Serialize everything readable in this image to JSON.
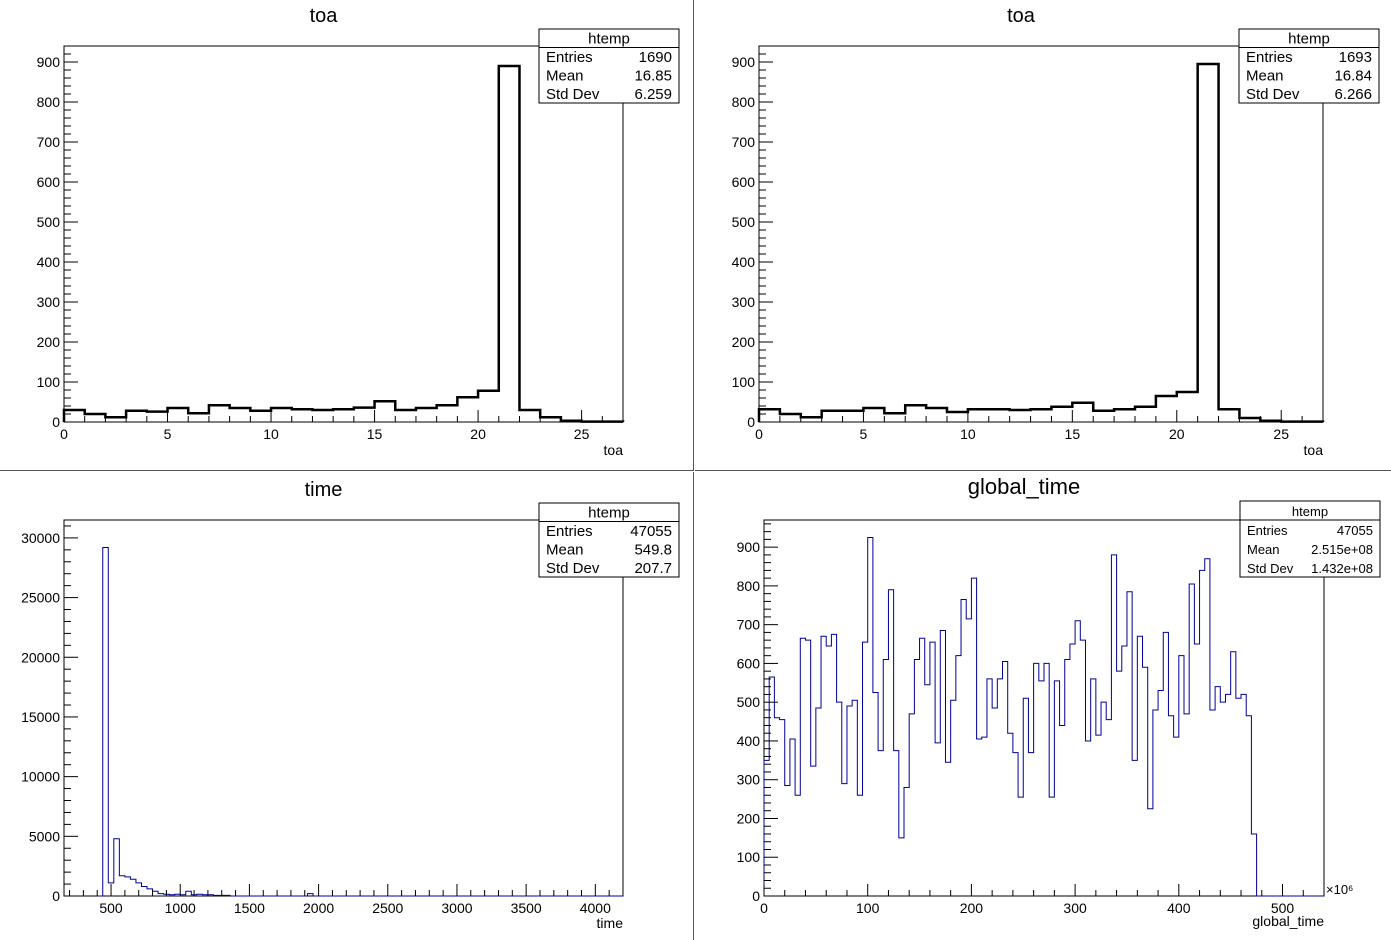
{
  "chart_data": [
    {
      "type": "bar",
      "title": "toa",
      "xlabel": "toa",
      "ylabel": "",
      "xlim": [
        0,
        27
      ],
      "ylim": [
        0,
        940
      ],
      "xticks": [
        0,
        5,
        10,
        15,
        20,
        25
      ],
      "yticks": [
        0,
        100,
        200,
        300,
        400,
        500,
        600,
        700,
        800,
        900
      ],
      "bin_edges": [
        0,
        1,
        2,
        3,
        4,
        5,
        6,
        7,
        8,
        9,
        10,
        11,
        12,
        13,
        14,
        15,
        16,
        17,
        18,
        19,
        20,
        21,
        22,
        23,
        24,
        25,
        26,
        27
      ],
      "values": [
        30,
        20,
        12,
        28,
        26,
        35,
        22,
        42,
        35,
        28,
        35,
        32,
        30,
        32,
        36,
        52,
        30,
        35,
        42,
        62,
        78,
        890,
        30,
        12,
        3,
        1,
        1
      ],
      "line_color": "#000000",
      "stats": {
        "title": "htemp",
        "rows": [
          {
            "label": "Entries",
            "value": "1690"
          },
          {
            "label": "Mean",
            "value": "16.85"
          },
          {
            "label": "Std Dev",
            "value": "6.259"
          }
        ]
      }
    },
    {
      "type": "bar",
      "title": "toa",
      "xlabel": "toa",
      "ylabel": "",
      "xlim": [
        0,
        27
      ],
      "ylim": [
        0,
        940
      ],
      "xticks": [
        0,
        5,
        10,
        15,
        20,
        25
      ],
      "yticks": [
        0,
        100,
        200,
        300,
        400,
        500,
        600,
        700,
        800,
        900
      ],
      "bin_edges": [
        0,
        1,
        2,
        3,
        4,
        5,
        6,
        7,
        8,
        9,
        10,
        11,
        12,
        13,
        14,
        15,
        16,
        17,
        18,
        19,
        20,
        21,
        22,
        23,
        24,
        25,
        26,
        27
      ],
      "values": [
        32,
        20,
        12,
        28,
        28,
        35,
        22,
        42,
        35,
        25,
        32,
        32,
        30,
        32,
        38,
        48,
        28,
        32,
        38,
        65,
        75,
        895,
        32,
        10,
        3,
        1,
        1
      ],
      "line_color": "#000000",
      "stats": {
        "title": "htemp",
        "rows": [
          {
            "label": "Entries",
            "value": "1693"
          },
          {
            "label": "Mean",
            "value": "16.84"
          },
          {
            "label": "Std Dev",
            "value": "6.266"
          }
        ]
      }
    },
    {
      "type": "bar",
      "title": "time",
      "xlabel": "time",
      "ylabel": "",
      "xlim": [
        160,
        4200
      ],
      "ylim": [
        0,
        31500
      ],
      "xticks": [
        500,
        1000,
        1500,
        2000,
        2500,
        3000,
        3500,
        4000
      ],
      "yticks": [
        0,
        5000,
        10000,
        15000,
        20000,
        25000,
        30000
      ],
      "bin_width": 40,
      "bin_start": 400,
      "values": [
        0,
        29200,
        1100,
        4800,
        1700,
        1600,
        1400,
        1100,
        800,
        600,
        400,
        200,
        150,
        100,
        150,
        100,
        400,
        100,
        150,
        100,
        100,
        50,
        50,
        50,
        0,
        0,
        0,
        0,
        0,
        0,
        0,
        0,
        0,
        0,
        0,
        0,
        0,
        0,
        200,
        0,
        0,
        0,
        0,
        0,
        0,
        0,
        0,
        0,
        0,
        0,
        0,
        0,
        0,
        0,
        0,
        0,
        0,
        0,
        0,
        0,
        0,
        0,
        0,
        0,
        0,
        0,
        0,
        0,
        0,
        0,
        0,
        0,
        0,
        0,
        0,
        0,
        0,
        0,
        0,
        0,
        0,
        0,
        0,
        0,
        0,
        0,
        0,
        0,
        0,
        0,
        0,
        0,
        0,
        0,
        0,
        0,
        0,
        0,
        0,
        0
      ],
      "line_color": "#000099",
      "stats": {
        "title": "htemp",
        "rows": [
          {
            "label": "Entries",
            "value": "47055"
          },
          {
            "label": "Mean",
            "value": "549.8"
          },
          {
            "label": "Std Dev",
            "value": "207.7"
          }
        ]
      }
    },
    {
      "type": "bar",
      "title": "global_time",
      "xlabel": "global_time",
      "ylabel": "",
      "x_multiplier": "×10⁶",
      "xlim": [
        0,
        540
      ],
      "ylim": [
        0,
        970
      ],
      "xticks": [
        0,
        100,
        200,
        300,
        400,
        500
      ],
      "yticks": [
        0,
        100,
        200,
        300,
        400,
        500,
        600,
        700,
        800,
        900
      ],
      "bin_width": 5,
      "bin_start": 0,
      "values": [
        350,
        565,
        460,
        455,
        285,
        405,
        260,
        665,
        660,
        335,
        485,
        670,
        645,
        675,
        500,
        290,
        490,
        505,
        260,
        655,
        925,
        525,
        375,
        610,
        790,
        375,
        150,
        280,
        470,
        610,
        665,
        545,
        655,
        395,
        685,
        345,
        505,
        620,
        765,
        715,
        820,
        405,
        410,
        560,
        485,
        560,
        605,
        420,
        370,
        255,
        510,
        370,
        600,
        555,
        600,
        255,
        555,
        440,
        610,
        650,
        710,
        660,
        400,
        560,
        415,
        500,
        455,
        880,
        580,
        645,
        785,
        350,
        670,
        590,
        225,
        480,
        530,
        680,
        465,
        410,
        620,
        470,
        805,
        650,
        840,
        870,
        480,
        540,
        500,
        520,
        630,
        510,
        520,
        465,
        160,
        0,
        0,
        0,
        0,
        0,
        0,
        0,
        0,
        0,
        0,
        0,
        0,
        0
      ],
      "line_color": "#000099",
      "stats": {
        "title": "htemp",
        "rows": [
          {
            "label": "Entries",
            "value": "47055"
          },
          {
            "label": "Mean",
            "value": "2.515e+08"
          },
          {
            "label": "Std Dev",
            "value": "1.432e+08"
          }
        ]
      }
    }
  ]
}
